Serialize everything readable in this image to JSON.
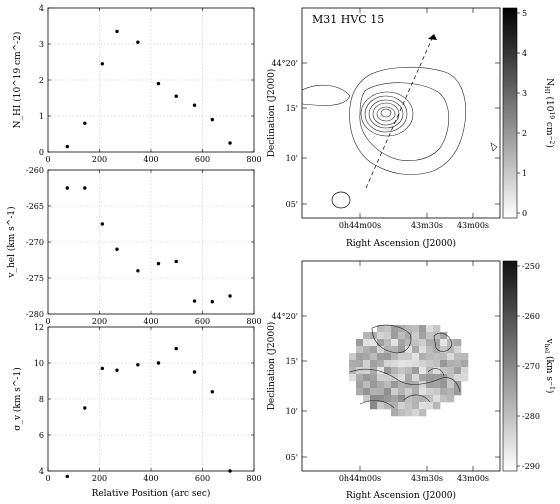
{
  "figure": {
    "map_top_title": "M31 HVC 15",
    "map_top_xlabel": "Right Ascension (J2000)",
    "map_top_ylabel": "Declination (J2000)",
    "map_bottom_xlabel": "Right Ascension (J2000)",
    "map_bottom_ylabel": "Declination (J2000)",
    "map_ra_ticks": [
      "0h44m00s",
      "43m30s",
      "43m00s"
    ],
    "map_dec_ticks": [
      "44°20'",
      "15'",
      "10'",
      "05'"
    ],
    "colorbar_top_label": "N_HI (10^19 cm^-2)",
    "colorbar_top_ticks": [
      "0",
      "1",
      "2",
      "3",
      "4",
      "5"
    ],
    "colorbar_bottom_label": "v_hel (km s^-1)",
    "colorbar_bottom_ticks": [
      "-250",
      "-260",
      "-270",
      "-280",
      "-290"
    ],
    "colors": {
      "background": "#ffffff",
      "points": "#000000",
      "grid": "#bdbdbd"
    }
  },
  "chart_data": [
    {
      "type": "scatter",
      "xlabel": "",
      "ylabel": "N_HI (10^19 cm^-2)",
      "xlim": [
        0,
        800
      ],
      "ylim": [
        0,
        4
      ],
      "xticks": [
        "0",
        "200",
        "400",
        "600",
        "800"
      ],
      "yticks": [
        "0",
        "1",
        "2",
        "3",
        "4"
      ],
      "grid": true,
      "x": [
        75,
        143,
        211,
        268,
        349,
        429,
        498,
        569,
        638,
        707
      ],
      "y": [
        0.15,
        0.8,
        2.45,
        3.35,
        3.05,
        1.9,
        1.55,
        1.3,
        0.9,
        0.25
      ]
    },
    {
      "type": "scatter",
      "xlabel": "",
      "ylabel": "v_hel (km s^-1)",
      "xlim": [
        0,
        800
      ],
      "ylim": [
        -280,
        -260
      ],
      "xticks": [
        "0",
        "200",
        "400",
        "600",
        "800"
      ],
      "yticks": [
        "-260",
        "-265",
        "-270",
        "-275",
        "-280"
      ],
      "grid": true,
      "x": [
        75,
        143,
        211,
        268,
        349,
        429,
        498,
        569,
        638,
        707
      ],
      "y": [
        -262.5,
        -262.5,
        -267.5,
        -271.0,
        -274.0,
        -273.0,
        -272.7,
        -278.2,
        -278.3,
        -277.5
      ]
    },
    {
      "type": "scatter",
      "xlabel": "Relative Position (arc sec)",
      "ylabel": "σ_v (km s^-1)",
      "xlim": [
        0,
        800
      ],
      "ylim": [
        4,
        12
      ],
      "xticks": [
        "0",
        "200",
        "400",
        "600",
        "800"
      ],
      "yticks": [
        "4",
        "6",
        "8",
        "10",
        "12"
      ],
      "grid": true,
      "x": [
        75,
        143,
        211,
        268,
        349,
        429,
        498,
        569,
        638,
        707
      ],
      "y": [
        3.7,
        7.5,
        9.7,
        9.6,
        9.9,
        10.0,
        10.8,
        9.5,
        8.4,
        4.0
      ]
    }
  ]
}
